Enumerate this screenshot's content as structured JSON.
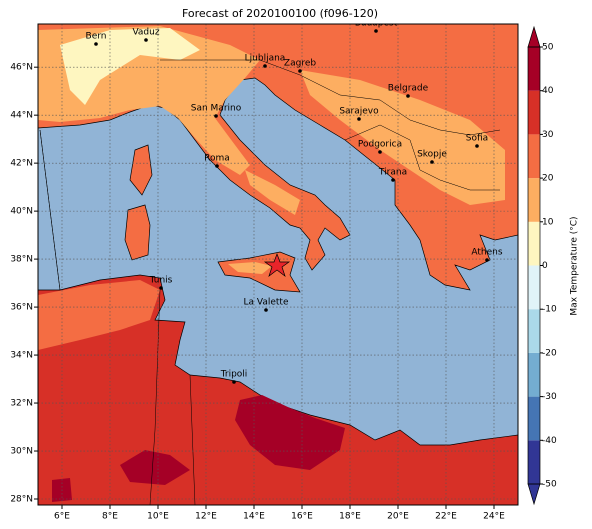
{
  "title": "Forecast of 2020100100 (f096-120)",
  "map": {
    "xlim": [
      5,
      25
    ],
    "ylim": [
      27.75,
      47.8
    ],
    "xticks": [
      {
        "value": 6,
        "label": "6°E"
      },
      {
        "value": 8,
        "label": "8°E"
      },
      {
        "value": 10,
        "label": "10°E"
      },
      {
        "value": 12,
        "label": "12°E"
      },
      {
        "value": 14,
        "label": "14°E"
      },
      {
        "value": 16,
        "label": "16°E"
      },
      {
        "value": 18,
        "label": "18°E"
      },
      {
        "value": 20,
        "label": "20°E"
      },
      {
        "value": 22,
        "label": "22°E"
      },
      {
        "value": 24,
        "label": "24°E"
      }
    ],
    "yticks": [
      {
        "value": 28,
        "label": "28°N"
      },
      {
        "value": 30,
        "label": "30°N"
      },
      {
        "value": 32,
        "label": "32°N"
      },
      {
        "value": 34,
        "label": "34°N"
      },
      {
        "value": 36,
        "label": "36°N"
      },
      {
        "value": 38,
        "label": "38°N"
      },
      {
        "value": 40,
        "label": "40°N"
      },
      {
        "value": 42,
        "label": "42°N"
      },
      {
        "value": 44,
        "label": "44°N"
      },
      {
        "value": 46,
        "label": "46°N"
      }
    ],
    "grid": true
  },
  "cities": [
    "Bern",
    "Vaduz",
    "Budapest",
    "Ljubljana",
    "Zagreb",
    "Belgrade",
    "San Marino",
    "Sarajevo",
    "Sofia",
    "Podgorica",
    "Skopje",
    "Roma",
    "Tirana",
    "Athens",
    "Tunis",
    "La Valette",
    "Tripoli"
  ],
  "colorbar": {
    "label": "Max Temperature (°C)",
    "lim": [
      -50,
      50
    ],
    "ticks": [
      -50,
      -40,
      -30,
      -20,
      -10,
      0,
      10,
      20,
      30,
      40,
      50
    ],
    "colors": [
      "#313695",
      "#4575b4",
      "#74add1",
      "#abd9e9",
      "#e0f3f8",
      "#fef6c0",
      "#fdae61",
      "#f46d43",
      "#d73027",
      "#a50026"
    ]
  }
}
